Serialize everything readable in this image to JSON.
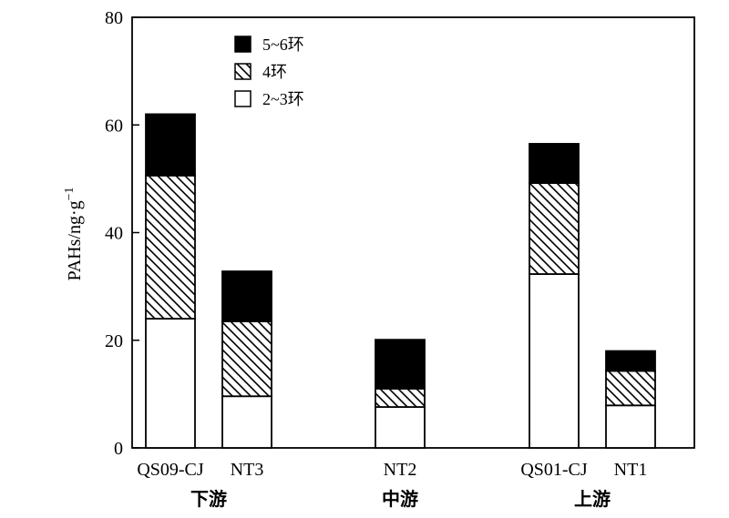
{
  "chart_data": {
    "type": "bar",
    "stacked": true,
    "categories": [
      "QS09-CJ",
      "NT3",
      "NT2",
      "QS01-CJ",
      "NT1"
    ],
    "groups": [
      {
        "label": "下游",
        "categories": [
          "QS09-CJ",
          "NT3"
        ]
      },
      {
        "label": "中游",
        "categories": [
          "NT2"
        ]
      },
      {
        "label": "上游",
        "categories": [
          "QS01-CJ",
          "NT1"
        ]
      }
    ],
    "series": [
      {
        "name": "2~3环",
        "fill": "white",
        "values": [
          24.0,
          9.6,
          7.6,
          32.3,
          7.9
        ]
      },
      {
        "name": "4环",
        "fill": "hatch",
        "values": [
          26.6,
          13.9,
          3.4,
          16.9,
          6.4
        ]
      },
      {
        "name": "5~6环",
        "fill": "black",
        "values": [
          11.4,
          9.3,
          9.1,
          7.3,
          3.7
        ]
      }
    ],
    "ylabel_main": "PAHs/ng·g",
    "ylabel_sup": "−1",
    "ylim": [
      0,
      80
    ],
    "yticks": [
      0,
      20,
      40,
      60,
      80
    ],
    "legend_position": "top-left",
    "grid": false
  }
}
